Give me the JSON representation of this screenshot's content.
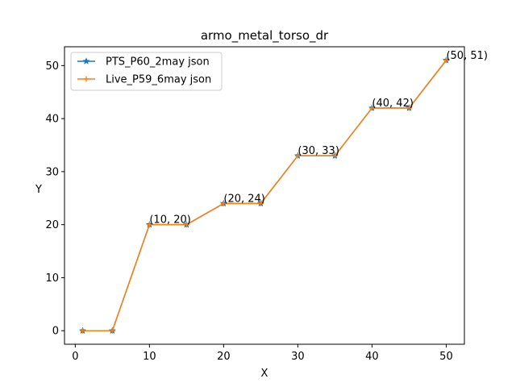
{
  "chart_data": {
    "type": "line",
    "title": "armo_metal_torso_dr",
    "xlabel": "X",
    "ylabel": "Y",
    "xlim": [
      -1.45,
      52.45
    ],
    "ylim": [
      -2.55,
      53.55
    ],
    "xticks": [
      0,
      10,
      20,
      30,
      40,
      50
    ],
    "yticks": [
      0,
      10,
      20,
      30,
      40,
      50
    ],
    "grid": false,
    "legend_position": "top-left",
    "x": [
      1,
      5,
      10,
      15,
      20,
      25,
      30,
      35,
      40,
      45,
      50
    ],
    "series": [
      {
        "name": "PTS_P60_2may json",
        "color": "#1f77b4",
        "marker": "star",
        "values": [
          0,
          0,
          20,
          20,
          24,
          24,
          33,
          33,
          42,
          42,
          51
        ]
      },
      {
        "name": "Live_P59_6may json",
        "color": "#ff7f0e",
        "marker": "plus",
        "values": [
          0,
          0,
          20,
          20,
          24,
          24,
          33,
          33,
          42,
          42,
          51
        ]
      }
    ],
    "annotations": [
      {
        "x": 10,
        "y": 20,
        "text": "(10, 20)"
      },
      {
        "x": 20,
        "y": 24,
        "text": "(20, 24)"
      },
      {
        "x": 30,
        "y": 33,
        "text": "(30, 33)"
      },
      {
        "x": 40,
        "y": 42,
        "text": "(40, 42)"
      },
      {
        "x": 50,
        "y": 51,
        "text": "(50, 51)"
      }
    ]
  }
}
